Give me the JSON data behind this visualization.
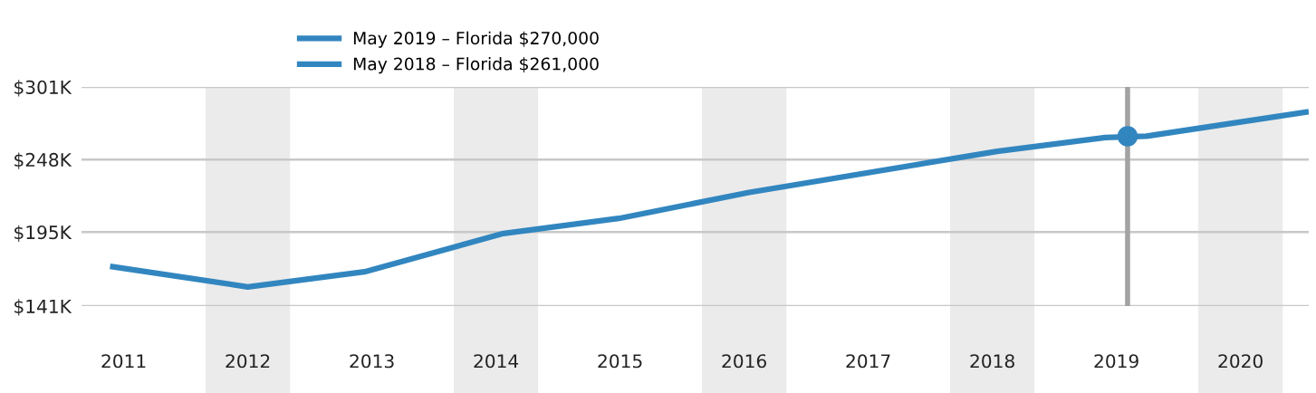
{
  "chart_data": {
    "type": "line",
    "x": [
      2010.89,
      2012,
      2012.94,
      2014.06,
      2014.99,
      2016.04,
      2018.04,
      2018.91,
      2019.24,
      2020.55
    ],
    "series": [
      {
        "name": "May 2019 – Florida $270,000",
        "color": "#3286bf",
        "values": [
          170,
          155,
          166,
          194,
          205,
          224,
          254,
          264,
          265,
          283
        ]
      },
      {
        "type": "scatter",
        "color": "#3286bf",
        "x": [
          2019.09
        ],
        "values": [
          265
        ],
        "marker": "circle"
      }
    ],
    "annotations": [
      "May 2018 – Florida $261,000"
    ],
    "xlim": [
      2010.66,
      2020.55
    ],
    "xticks": [
      2011,
      2012,
      2013,
      2014,
      2015,
      2016,
      2017,
      2018,
      2019,
      2020
    ],
    "ylim": [
      141,
      301
    ],
    "yticks": [
      {
        "value": 141,
        "label": "$141K"
      },
      {
        "value": 195,
        "label": "$195K"
      },
      {
        "value": 248,
        "label": "$248K"
      },
      {
        "value": 301,
        "label": "$301K"
      }
    ],
    "bands": [
      {
        "axis": "x",
        "from": 2011.66,
        "to": 2012.34,
        "color": "#ebebeb"
      },
      {
        "axis": "x",
        "from": 2013.66,
        "to": 2014.34,
        "color": "#ebebeb"
      },
      {
        "axis": "x",
        "from": 2015.66,
        "to": 2016.34,
        "color": "#ebebeb"
      },
      {
        "axis": "x",
        "from": 2017.66,
        "to": 2018.34,
        "color": "#ebebeb"
      },
      {
        "axis": "x",
        "from": 2019.66,
        "to": 2020.34,
        "color": "#ebebeb"
      }
    ],
    "ref_lines": [
      {
        "axis": "x",
        "value": 2019.09,
        "color": "#a3a3a3"
      }
    ],
    "grid": "y",
    "legend": "top",
    "line_style": "solid"
  }
}
